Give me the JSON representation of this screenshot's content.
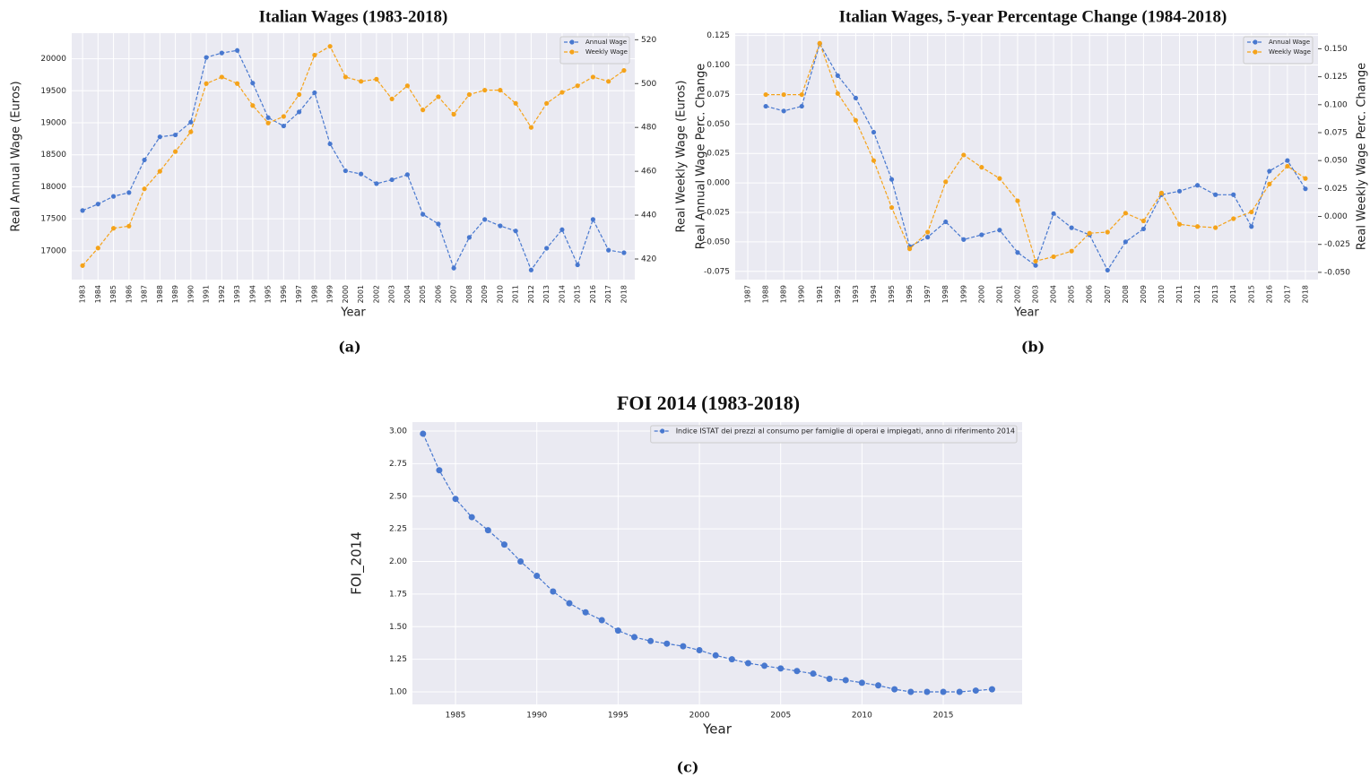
{
  "chart_data": [
    {
      "type": "line",
      "title": "Italian Wages (1983-2018)",
      "caption": "(a)",
      "xlabel": "Year",
      "ylabel": "Real Annual Wage (Euros)",
      "y2label": "Real Weekly Wage (Euros)",
      "categories": [
        "1983",
        "1984",
        "1985",
        "1986",
        "1987",
        "1988",
        "1989",
        "1990",
        "1991",
        "1992",
        "1993",
        "1994",
        "1995",
        "1996",
        "1997",
        "1998",
        "1999",
        "2000",
        "2001",
        "2002",
        "2003",
        "2004",
        "2005",
        "2006",
        "2007",
        "2008",
        "2009",
        "2010",
        "2011",
        "2012",
        "2013",
        "2014",
        "2015",
        "2016",
        "2017",
        "2018"
      ],
      "series": [
        {
          "name": "Annual Wage",
          "color": "#4878cf",
          "values": [
            17630,
            17730,
            17850,
            17910,
            18420,
            18780,
            18810,
            19010,
            20020,
            20090,
            20130,
            19620,
            19080,
            18950,
            19170,
            19470,
            18670,
            18250,
            18200,
            18050,
            18110,
            18190,
            17570,
            17420,
            16730,
            17210,
            17490,
            17390,
            17310,
            16700,
            17040,
            17330,
            16780,
            17490,
            17010,
            16970
          ]
        },
        {
          "name": "Weekly Wage",
          "color": "#f5a31a",
          "axis": "y2",
          "values": [
            417,
            425,
            434,
            435,
            452,
            460,
            469,
            478,
            500,
            503,
            500,
            490,
            482,
            485,
            495,
            513,
            517,
            503,
            501,
            502,
            493,
            499,
            488,
            494,
            486,
            495,
            497,
            497,
            491,
            480,
            491,
            496,
            499,
            503,
            501,
            506
          ]
        }
      ],
      "ylim": [
        16550,
        20400
      ],
      "yticks": [
        17000,
        17500,
        18000,
        18500,
        19000,
        19500,
        20000
      ],
      "y2lim": [
        410.6,
        523
      ],
      "y2ticks": [
        420,
        440,
        460,
        480,
        500,
        520
      ],
      "grid": true,
      "legend": "upper right"
    },
    {
      "type": "line",
      "title": "Italian Wages, 5-year Percentage Change (1984-2018)",
      "caption": "(b)",
      "xlabel": "Year",
      "ylabel": "Real Annual Wage Perc. Change",
      "y2label": "Real Weekly Wage Perc. Change",
      "categories": [
        "1987",
        "1988",
        "1989",
        "1990",
        "1991",
        "1992",
        "1993",
        "1994",
        "1995",
        "1996",
        "1997",
        "1998",
        "1999",
        "2000",
        "2001",
        "2002",
        "2003",
        "2004",
        "2005",
        "2006",
        "2007",
        "2008",
        "2009",
        "2010",
        "2011",
        "2012",
        "2013",
        "2014",
        "2015",
        "2016",
        "2017",
        "2018"
      ],
      "series": [
        {
          "name": "Annual Wage",
          "color": "#4878cf",
          "values": [
            null,
            0.065,
            0.061,
            0.065,
            0.118,
            0.091,
            0.072,
            0.043,
            0.003,
            -0.054,
            -0.046,
            -0.033,
            -0.048,
            -0.044,
            -0.04,
            -0.059,
            -0.07,
            -0.026,
            -0.038,
            -0.044,
            -0.074,
            -0.05,
            -0.039,
            -0.01,
            -0.007,
            -0.002,
            -0.01,
            -0.01,
            -0.037,
            0.01,
            0.019,
            -0.005
          ]
        },
        {
          "name": "Weekly Wage",
          "color": "#f5a31a",
          "axis": "y2",
          "values": [
            null,
            0.109,
            0.109,
            0.109,
            0.155,
            0.11,
            0.086,
            0.05,
            0.008,
            -0.029,
            -0.014,
            0.031,
            0.055,
            0.044,
            0.034,
            0.014,
            -0.04,
            -0.036,
            -0.031,
            -0.015,
            -0.014,
            0.003,
            -0.004,
            0.021,
            -0.007,
            -0.009,
            -0.01,
            -0.002,
            0.004,
            0.029,
            0.045,
            0.034
          ]
        }
      ],
      "ylim": [
        -0.082,
        0.127
      ],
      "yticks": [
        -0.075,
        {
          "value": -0.05,
          "label": "-0.050"
        },
        -0.025,
        {
          "value": 0,
          "label": "0.000"
        },
        0.025,
        {
          "value": 0.05,
          "label": "0.050"
        },
        0.075,
        {
          "value": 0.1,
          "label": "0.100"
        },
        0.125
      ],
      "y2lim": [
        -0.0565,
        0.164
      ],
      "y2ticks": [
        {
          "value": -0.05,
          "label": "-0.050"
        },
        -0.025,
        {
          "value": 0,
          "label": "0.000"
        },
        0.025,
        {
          "value": 0.05,
          "label": "0.050"
        },
        0.075,
        {
          "value": 0.1,
          "label": "0.100"
        },
        0.125,
        {
          "value": 0.15,
          "label": "0.150"
        }
      ],
      "grid": true,
      "legend": "upper right"
    },
    {
      "type": "line",
      "title": "FOI 2014 (1983-2018)",
      "caption": "(c)",
      "xlabel": "Year",
      "ylabel": "FOI_2014",
      "x": [
        1983,
        1984,
        1985,
        1986,
        1987,
        1988,
        1989,
        1990,
        1991,
        1992,
        1993,
        1994,
        1995,
        1996,
        1997,
        1998,
        1999,
        2000,
        2001,
        2002,
        2003,
        2004,
        2005,
        2006,
        2007,
        2008,
        2009,
        2010,
        2011,
        2012,
        2013,
        2014,
        2015,
        2016,
        2017,
        2018
      ],
      "series": [
        {
          "name": "Indice ISTAT dei prezzi al consumo per famiglie di operai e impiegati, anno di riferimento 2014",
          "color": "#4878cf",
          "values": [
            2.98,
            2.7,
            2.48,
            2.34,
            2.24,
            2.13,
            2.0,
            1.89,
            1.77,
            1.68,
            1.61,
            1.55,
            1.47,
            1.42,
            1.39,
            1.37,
            1.35,
            1.32,
            1.28,
            1.25,
            1.22,
            1.2,
            1.18,
            1.16,
            1.14,
            1.1,
            1.09,
            1.07,
            1.05,
            1.02,
            1.0,
            1.0,
            1.0,
            1.0,
            1.01,
            1.02
          ]
        }
      ],
      "xlim": [
        1982.35,
        2019.85
      ],
      "xticks": [
        1985,
        1990,
        1995,
        2000,
        2005,
        2010,
        2015
      ],
      "ylim": [
        0.904,
        3.069
      ],
      "yticks": [
        {
          "value": 1,
          "label": "1.00"
        },
        1.25,
        {
          "value": 1.5,
          "label": "1.50"
        },
        1.75,
        {
          "value": 2,
          "label": "2.00"
        },
        2.25,
        {
          "value": 2.5,
          "label": "2.50"
        },
        2.75,
        {
          "value": 3,
          "label": "3.00"
        }
      ],
      "grid": true,
      "legend": "upper right"
    }
  ]
}
